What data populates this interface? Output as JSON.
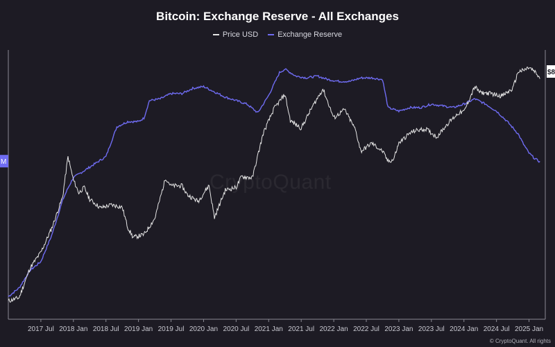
{
  "colors": {
    "background": "#1d1b24",
    "price": "#e6e6e6",
    "reserve": "#6f6cf2",
    "axis": "#8a8a93",
    "text": "#ffffff"
  },
  "watermark": "CryptoQuant",
  "copyright": "© CryptoQuant. All rights",
  "chart_data": {
    "type": "line",
    "title": "Bitcoin: Exchange Reserve - All Exchanges",
    "legend_position": "top-center",
    "grid": false,
    "x_range": [
      "2017-01",
      "2025-04"
    ],
    "x_ticks": [
      "2017 Jul",
      "2018 Jan",
      "2018 Jul",
      "2019 Jan",
      "2019 Jul",
      "2020 Jan",
      "2020 Jul",
      "2021 Jan",
      "2021 Jul",
      "2022 Jan",
      "2022 Jul",
      "2023 Jan",
      "2023 Jul",
      "2024 Jan",
      "2024 Jul",
      "2025 Jan"
    ],
    "left_axis_marker": "M",
    "right_axis_marker": "$8",
    "series": [
      {
        "name": "Price USD",
        "color": "#e6e6e6",
        "axis": "right",
        "scale": "log",
        "points": [
          [
            "2017-01",
            980
          ],
          [
            "2017-03",
            1050
          ],
          [
            "2017-05",
            1900
          ],
          [
            "2017-07",
            2600
          ],
          [
            "2017-09",
            4200
          ],
          [
            "2017-11",
            7800
          ],
          [
            "2017-12",
            17500
          ],
          [
            "2018-01",
            11000
          ],
          [
            "2018-02",
            8500
          ],
          [
            "2018-03",
            9500
          ],
          [
            "2018-04",
            7500
          ],
          [
            "2018-06",
            6300
          ],
          [
            "2018-08",
            6700
          ],
          [
            "2018-10",
            6400
          ],
          [
            "2018-11",
            4300
          ],
          [
            "2018-12",
            3500
          ],
          [
            "2019-02",
            3700
          ],
          [
            "2019-04",
            5100
          ],
          [
            "2019-06",
            11500
          ],
          [
            "2019-07",
            9800
          ],
          [
            "2019-09",
            9800
          ],
          [
            "2019-10",
            8200
          ],
          [
            "2019-12",
            7200
          ],
          [
            "2020-02",
            9900
          ],
          [
            "2020-03",
            5200
          ],
          [
            "2020-05",
            9000
          ],
          [
            "2020-07",
            9500
          ],
          [
            "2020-08",
            11800
          ],
          [
            "2020-10",
            11500
          ],
          [
            "2020-11",
            18000
          ],
          [
            "2020-12",
            28000
          ],
          [
            "2021-02",
            46000
          ],
          [
            "2021-04",
            61000
          ],
          [
            "2021-05",
            36000
          ],
          [
            "2021-07",
            31000
          ],
          [
            "2021-09",
            47000
          ],
          [
            "2021-11",
            68000
          ],
          [
            "2022-01",
            38000
          ],
          [
            "2022-03",
            45000
          ],
          [
            "2022-05",
            30000
          ],
          [
            "2022-06",
            19500
          ],
          [
            "2022-08",
            23000
          ],
          [
            "2022-10",
            19500
          ],
          [
            "2022-11",
            16000
          ],
          [
            "2022-12",
            16500
          ],
          [
            "2023-01",
            23000
          ],
          [
            "2023-03",
            28000
          ],
          [
            "2023-04",
            29500
          ],
          [
            "2023-06",
            30500
          ],
          [
            "2023-08",
            26000
          ],
          [
            "2023-10",
            34000
          ],
          [
            "2023-12",
            42000
          ],
          [
            "2024-01",
            43000
          ],
          [
            "2024-03",
            71000
          ],
          [
            "2024-04",
            63000
          ],
          [
            "2024-06",
            62000
          ],
          [
            "2024-08",
            59000
          ],
          [
            "2024-10",
            68000
          ],
          [
            "2024-11",
            96000
          ],
          [
            "2024-12",
            98000
          ],
          [
            "2025-01",
            104000
          ],
          [
            "2025-02",
            96000
          ],
          [
            "2025-03",
            84000
          ]
        ]
      },
      {
        "name": "Exchange Reserve",
        "color": "#6f6cf2",
        "axis": "left",
        "unit": "M BTC",
        "points": [
          [
            "2017-01",
            2.0
          ],
          [
            "2017-03",
            2.05
          ],
          [
            "2017-05",
            2.15
          ],
          [
            "2017-07",
            2.2
          ],
          [
            "2017-09",
            2.35
          ],
          [
            "2017-11",
            2.55
          ],
          [
            "2017-12",
            2.62
          ],
          [
            "2018-01",
            2.68
          ],
          [
            "2018-03",
            2.72
          ],
          [
            "2018-05",
            2.76
          ],
          [
            "2018-07",
            2.8
          ],
          [
            "2018-09",
            2.97
          ],
          [
            "2018-11",
            3.0
          ],
          [
            "2019-01",
            3.0
          ],
          [
            "2019-02",
            3.02
          ],
          [
            "2019-03",
            3.12
          ],
          [
            "2019-05",
            3.13
          ],
          [
            "2019-07",
            3.16
          ],
          [
            "2019-09",
            3.16
          ],
          [
            "2019-11",
            3.19
          ],
          [
            "2020-01",
            3.2
          ],
          [
            "2020-03",
            3.17
          ],
          [
            "2020-05",
            3.14
          ],
          [
            "2020-07",
            3.12
          ],
          [
            "2020-09",
            3.1
          ],
          [
            "2020-11",
            3.05
          ],
          [
            "2021-01",
            3.15
          ],
          [
            "2021-03",
            3.28
          ],
          [
            "2021-04",
            3.3
          ],
          [
            "2021-06",
            3.26
          ],
          [
            "2021-08",
            3.25
          ],
          [
            "2021-10",
            3.26
          ],
          [
            "2021-12",
            3.24
          ],
          [
            "2022-02",
            3.23
          ],
          [
            "2022-04",
            3.23
          ],
          [
            "2022-06",
            3.25
          ],
          [
            "2022-08",
            3.25
          ],
          [
            "2022-10",
            3.24
          ],
          [
            "2022-11",
            3.08
          ],
          [
            "2023-01",
            3.06
          ],
          [
            "2023-03",
            3.08
          ],
          [
            "2023-05",
            3.08
          ],
          [
            "2023-07",
            3.1
          ],
          [
            "2023-09",
            3.09
          ],
          [
            "2023-11",
            3.08
          ],
          [
            "2024-01",
            3.1
          ],
          [
            "2024-03",
            3.13
          ],
          [
            "2024-05",
            3.1
          ],
          [
            "2024-07",
            3.06
          ],
          [
            "2024-09",
            3.0
          ],
          [
            "2024-11",
            2.93
          ],
          [
            "2024-12",
            2.87
          ],
          [
            "2025-01",
            2.82
          ],
          [
            "2025-02",
            2.79
          ],
          [
            "2025-03",
            2.77
          ]
        ]
      }
    ]
  }
}
